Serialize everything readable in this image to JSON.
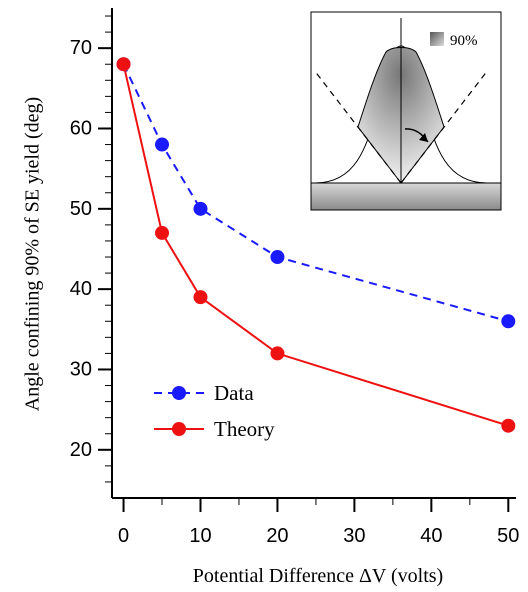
{
  "chart_data": {
    "type": "line",
    "title": "",
    "xlabel": "Potential Difference ΔV  (volts)",
    "ylabel": "Angle confining 90% of SE yield  (deg)",
    "x_ticks": [
      0,
      10,
      20,
      30,
      40,
      50
    ],
    "x_tick_labels": [
      "0",
      "10",
      "20",
      "30",
      "40",
      "50"
    ],
    "y_ticks": [
      20,
      30,
      40,
      50,
      60,
      70
    ],
    "y_tick_labels": [
      "20",
      "30",
      "40",
      "50",
      "60",
      "70"
    ],
    "xlim": [
      -1.5,
      51
    ],
    "ylim": [
      14,
      75
    ],
    "grid": false,
    "legend_position": "lower-left",
    "series": [
      {
        "name": "Data",
        "color": "#1a1aff",
        "line_style": "dashed",
        "marker": "circle",
        "x": [
          0,
          5,
          10,
          20,
          50
        ],
        "y": [
          68,
          58,
          50,
          44,
          36
        ]
      },
      {
        "name": "Theory",
        "color": "#ee1111",
        "line_style": "solid",
        "marker": "circle",
        "x": [
          0,
          5,
          10,
          20,
          50
        ],
        "y": [
          68,
          47,
          39,
          32,
          23
        ]
      }
    ],
    "inset": {
      "label": "90%"
    }
  }
}
